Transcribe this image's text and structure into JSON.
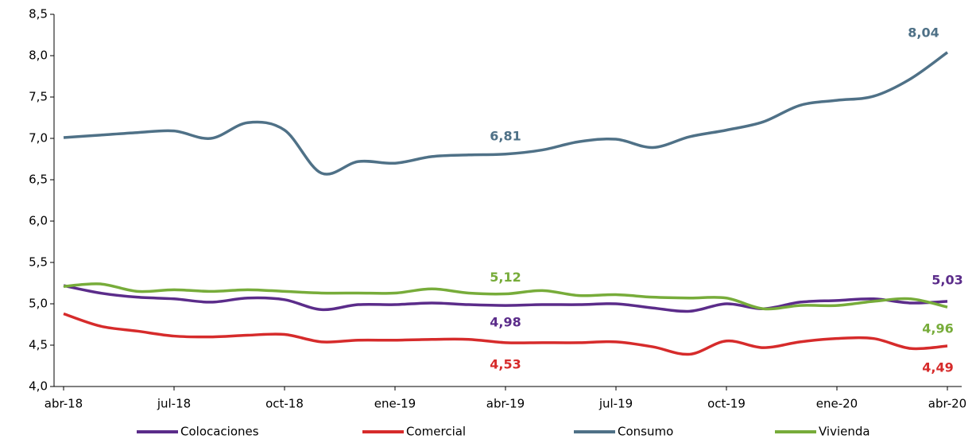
{
  "chart_data": {
    "type": "line",
    "categories": [
      "abr-18",
      null,
      null,
      "jul-18",
      null,
      null,
      "oct-18",
      null,
      null,
      "ene-19",
      null,
      null,
      "abr-19",
      null,
      null,
      "jul-19",
      null,
      null,
      "oct-19",
      null,
      null,
      "ene-20",
      null,
      null,
      "abr-20"
    ],
    "ylim": [
      4,
      8.5
    ],
    "yticks": [
      {
        "value": 4,
        "label": "4,0"
      },
      {
        "value": 4.5,
        "label": "4,5"
      },
      {
        "value": 5,
        "label": "5,0"
      },
      {
        "value": 5.5,
        "label": "5,5"
      },
      {
        "value": 6,
        "label": "6,0"
      },
      {
        "value": 6.5,
        "label": "6,5"
      },
      {
        "value": 7,
        "label": "7,0"
      },
      {
        "value": 7.5,
        "label": "7,5"
      },
      {
        "value": 8,
        "label": "8,0"
      },
      {
        "value": 8.5,
        "label": "8,5"
      }
    ],
    "series": [
      {
        "name": "Colocaciones",
        "color": "#5b2c8a",
        "values": [
          5.22,
          5.13,
          5.08,
          5.06,
          5.02,
          5.07,
          5.05,
          4.93,
          4.99,
          4.99,
          5.01,
          4.99,
          4.98,
          4.99,
          4.99,
          5.0,
          4.95,
          4.91,
          5.0,
          4.94,
          5.02,
          5.04,
          5.06,
          5.01,
          5.03
        ],
        "value_labels": [
          null,
          null,
          null,
          null,
          null,
          null,
          null,
          null,
          null,
          null,
          null,
          null,
          "4,98",
          null,
          null,
          null,
          null,
          null,
          null,
          null,
          null,
          null,
          null,
          null,
          "5,03"
        ]
      },
      {
        "name": "Comercial",
        "color": "#d62b2b",
        "values": [
          4.88,
          4.73,
          4.67,
          4.61,
          4.6,
          4.62,
          4.63,
          4.54,
          4.56,
          4.56,
          4.57,
          4.57,
          4.53,
          4.53,
          4.53,
          4.54,
          4.48,
          4.39,
          4.55,
          4.47,
          4.54,
          4.58,
          4.58,
          4.46,
          4.49
        ],
        "value_labels": [
          null,
          null,
          null,
          null,
          null,
          null,
          null,
          null,
          null,
          null,
          null,
          null,
          "4,53",
          null,
          null,
          null,
          null,
          null,
          null,
          null,
          null,
          null,
          null,
          null,
          "4,49"
        ]
      },
      {
        "name": "Consumo",
        "color": "#4f7187",
        "values": [
          7.01,
          7.04,
          7.07,
          7.09,
          7.0,
          7.19,
          7.1,
          6.58,
          6.72,
          6.7,
          6.78,
          6.8,
          6.81,
          6.86,
          6.96,
          6.99,
          6.89,
          7.02,
          7.1,
          7.2,
          7.4,
          7.46,
          7.51,
          7.72,
          8.04
        ],
        "value_labels": [
          null,
          null,
          null,
          null,
          null,
          null,
          null,
          null,
          null,
          null,
          null,
          null,
          "6,81",
          null,
          null,
          null,
          null,
          null,
          null,
          null,
          null,
          null,
          null,
          null,
          "8,04"
        ]
      },
      {
        "name": "Vivienda",
        "color": "#77ac3a",
        "values": [
          5.21,
          5.24,
          5.15,
          5.17,
          5.15,
          5.17,
          5.15,
          5.13,
          5.13,
          5.13,
          5.18,
          5.13,
          5.12,
          5.16,
          5.1,
          5.11,
          5.08,
          5.07,
          5.07,
          4.94,
          4.98,
          4.98,
          5.03,
          5.06,
          4.96
        ],
        "value_labels": [
          null,
          null,
          null,
          null,
          null,
          null,
          null,
          null,
          null,
          null,
          null,
          null,
          "5,12",
          null,
          null,
          null,
          null,
          null,
          null,
          null,
          null,
          null,
          null,
          null,
          "4,96"
        ]
      }
    ]
  }
}
